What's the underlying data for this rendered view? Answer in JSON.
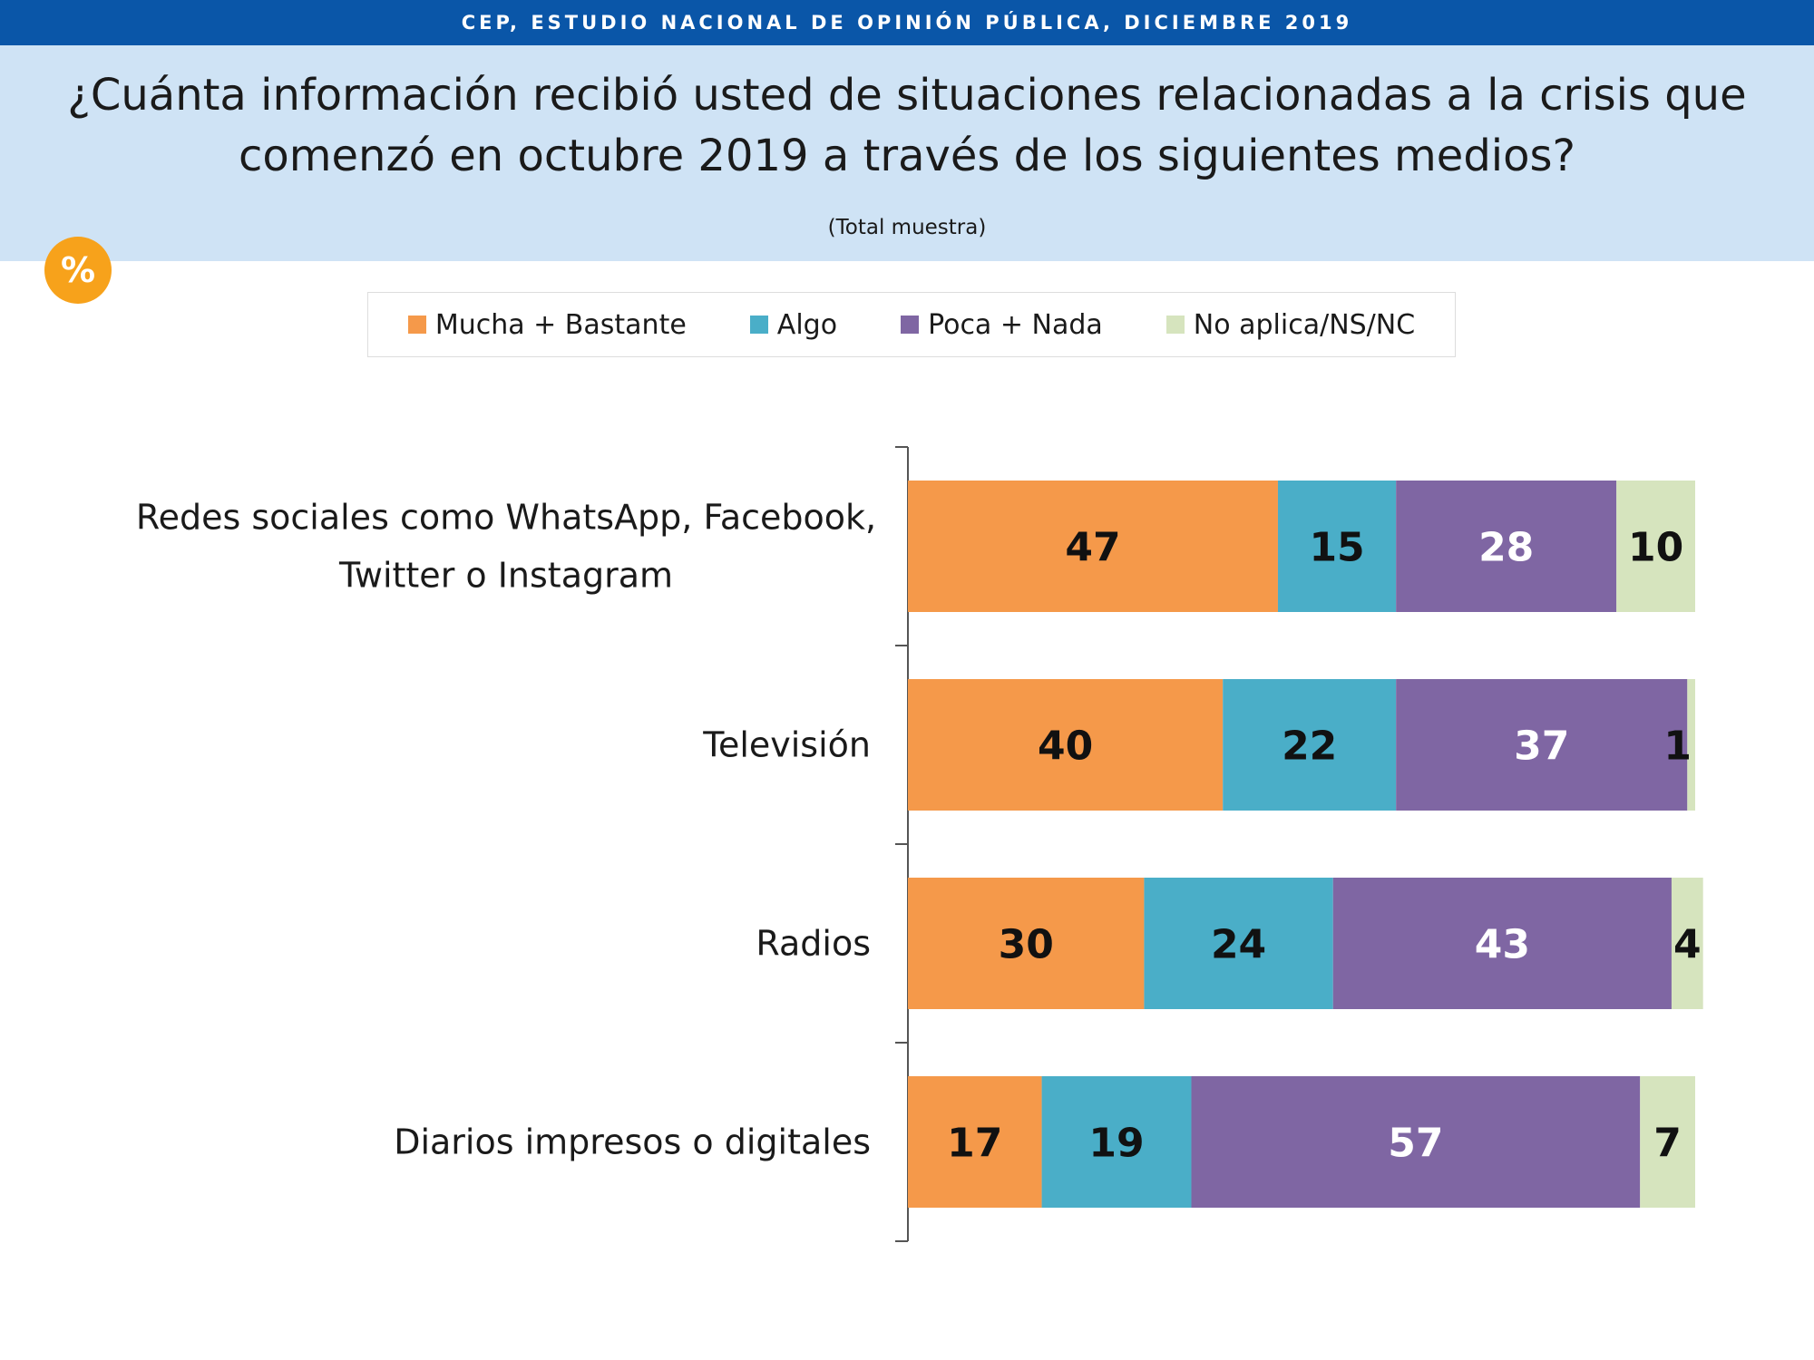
{
  "banner": {
    "text": "CEP, ESTUDIO NACIONAL DE OPINIÓN PÚBLICA, DICIEMBRE 2019"
  },
  "question": {
    "line1": "¿Cuánta información recibió usted de situaciones relacionadas a la crisis que",
    "line2": "comenzó en octubre 2019 a través de los siguientes medios?",
    "note": "(Total muestra)"
  },
  "badge": {
    "text": "%"
  },
  "chart_data": {
    "type": "bar",
    "orientation": "horizontal",
    "stacked": true,
    "title": "¿Cuánta información recibió usted de situaciones relacionadas a la crisis que comenzó en octubre 2019 a través de los siguientes medios?",
    "subtitle": "(Total muestra)",
    "xlabel": "",
    "ylabel": "",
    "xlim": [
      0,
      100
    ],
    "grid": false,
    "legend_position": "top",
    "categories": [
      [
        "Redes sociales como WhatsApp, Facebook,",
        "Twitter o Instagram"
      ],
      [
        "Televisión"
      ],
      [
        "Radios"
      ],
      [
        "Diarios impresos o digitales"
      ]
    ],
    "series": [
      {
        "name": "Mucha + Bastante",
        "color": "#f5994a",
        "label_color": "#111111",
        "values": [
          47,
          40,
          30,
          17
        ]
      },
      {
        "name": "Algo",
        "color": "#4aaec8",
        "label_color": "#111111",
        "values": [
          15,
          22,
          24,
          19
        ]
      },
      {
        "name": "Poca + Nada",
        "color": "#7f66a3",
        "label_color": "#ffffff",
        "values": [
          28,
          37,
          43,
          57
        ]
      },
      {
        "name": "No aplica/NS/NC",
        "color": "#d6e4be",
        "label_color": "#111111",
        "values": [
          10,
          1,
          4,
          7
        ]
      }
    ]
  }
}
